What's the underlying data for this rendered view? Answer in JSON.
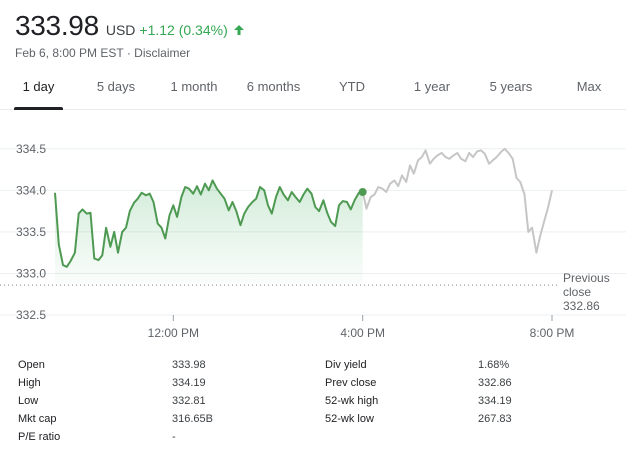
{
  "quote": {
    "price": "333.98",
    "currency": "USD",
    "change": "+1.12 (0.34%)",
    "timestamp": "Feb 6, 8:00 PM EST",
    "separator": " · ",
    "disclaimer": "Disclaimer"
  },
  "tabs": [
    {
      "label": "1 day",
      "active": true
    },
    {
      "label": "5 days",
      "active": false
    },
    {
      "label": "1 month",
      "active": false
    },
    {
      "label": "6 months",
      "active": false
    },
    {
      "label": "YTD",
      "active": false
    },
    {
      "label": "1 year",
      "active": false
    },
    {
      "label": "5 years",
      "active": false
    },
    {
      "label": "Max",
      "active": false
    }
  ],
  "colors": {
    "up": "#34a853",
    "line_regular": "#4e9a52",
    "line_after_hours": "#c6c6c6",
    "grid": "#eceff1",
    "baseline": "#80868b"
  },
  "chart_data": {
    "type": "line",
    "ylim": [
      332.5,
      334.75
    ],
    "yticks": [
      "334.5",
      "334.0",
      "333.5",
      "333.0",
      "332.5"
    ],
    "ytick_values": [
      334.5,
      334.0,
      333.5,
      333.0,
      332.5
    ],
    "xticks": [
      "12:00 PM",
      "4:00 PM",
      "8:00 PM"
    ],
    "xtick_values": [
      12,
      16,
      20
    ],
    "xlim": [
      9.5,
      20.0
    ],
    "previous_close": {
      "label_lines": [
        "Previous",
        "close"
      ],
      "value": "332.86",
      "y": 332.86
    },
    "series": [
      {
        "segment": "regular",
        "x": [
          9.5,
          9.58,
          9.67,
          9.75,
          9.83,
          9.92,
          10.0,
          10.08,
          10.17,
          10.25,
          10.33,
          10.42,
          10.5,
          10.58,
          10.67,
          10.75,
          10.83,
          10.92,
          11.0,
          11.08,
          11.17,
          11.25,
          11.33,
          11.42,
          11.5,
          11.58,
          11.67,
          11.75,
          11.83,
          11.92,
          12.0,
          12.08,
          12.17,
          12.25,
          12.33,
          12.42,
          12.5,
          12.58,
          12.67,
          12.75,
          12.83,
          12.92,
          13.0,
          13.08,
          13.17,
          13.25,
          13.33,
          13.42,
          13.5,
          13.58,
          13.67,
          13.75,
          13.83,
          13.92,
          14.0,
          14.08,
          14.17,
          14.25,
          14.33,
          14.42,
          14.5,
          14.58,
          14.67,
          14.75,
          14.83,
          14.92,
          15.0,
          15.08,
          15.17,
          15.25,
          15.33,
          15.42,
          15.5,
          15.58,
          15.67,
          15.75,
          15.83,
          15.92,
          16.0
        ],
        "y": [
          333.97,
          333.35,
          333.1,
          333.08,
          333.15,
          333.25,
          333.72,
          333.77,
          333.72,
          333.73,
          333.18,
          333.16,
          333.22,
          333.55,
          333.32,
          333.5,
          333.25,
          333.5,
          333.55,
          333.75,
          333.85,
          333.9,
          333.97,
          333.94,
          333.96,
          333.86,
          333.6,
          333.55,
          333.42,
          333.7,
          333.82,
          333.68,
          333.92,
          334.04,
          334.02,
          333.96,
          334.05,
          333.95,
          334.08,
          334.0,
          334.12,
          334.02,
          333.96,
          333.9,
          333.76,
          333.86,
          333.75,
          333.58,
          333.72,
          333.8,
          333.86,
          333.9,
          334.04,
          334.0,
          333.82,
          333.72,
          333.92,
          334.04,
          333.95,
          333.88,
          333.98,
          333.92,
          333.86,
          333.95,
          334.02,
          333.96,
          333.8,
          333.75,
          333.88,
          333.73,
          333.62,
          333.57,
          333.82,
          333.87,
          333.86,
          333.77,
          333.88,
          333.97,
          333.98
        ]
      },
      {
        "segment": "after_hours",
        "x": [
          16.0,
          16.08,
          16.17,
          16.25,
          16.33,
          16.42,
          16.5,
          16.58,
          16.67,
          16.75,
          16.83,
          16.92,
          17.0,
          17.08,
          17.17,
          17.25,
          17.33,
          17.42,
          17.5,
          17.58,
          17.67,
          17.75,
          17.83,
          17.92,
          18.0,
          18.08,
          18.17,
          18.25,
          18.33,
          18.42,
          18.5,
          18.58,
          18.67,
          18.75,
          18.83,
          18.92,
          19.0,
          19.08,
          19.17,
          19.25,
          19.33,
          19.42,
          19.5,
          19.58,
          19.67,
          19.75,
          19.83,
          19.92,
          20.0
        ],
        "y": [
          333.98,
          333.78,
          333.92,
          333.95,
          334.04,
          334.02,
          333.98,
          334.08,
          334.12,
          334.05,
          334.18,
          334.1,
          334.3,
          334.2,
          334.36,
          334.4,
          334.48,
          334.32,
          334.38,
          334.42,
          334.45,
          334.4,
          334.38,
          334.42,
          334.45,
          334.38,
          334.35,
          334.45,
          334.4,
          334.47,
          334.48,
          334.44,
          334.32,
          334.36,
          334.4,
          334.46,
          334.5,
          334.45,
          334.38,
          334.15,
          334.1,
          333.95,
          333.5,
          333.55,
          333.25,
          333.45,
          333.62,
          333.8,
          334.0
        ]
      }
    ]
  },
  "stats": [
    {
      "label": "Open",
      "value": "333.98"
    },
    {
      "label": "High",
      "value": "334.19"
    },
    {
      "label": "Low",
      "value": "332.81"
    },
    {
      "label": "Mkt cap",
      "value": "316.65B"
    },
    {
      "label": "P/E ratio",
      "value": "-"
    },
    {
      "label": "Div yield",
      "value": "1.68%"
    },
    {
      "label": "Prev close",
      "value": "332.86"
    },
    {
      "label": "52-wk high",
      "value": "334.19"
    },
    {
      "label": "52-wk low",
      "value": "267.83"
    }
  ]
}
